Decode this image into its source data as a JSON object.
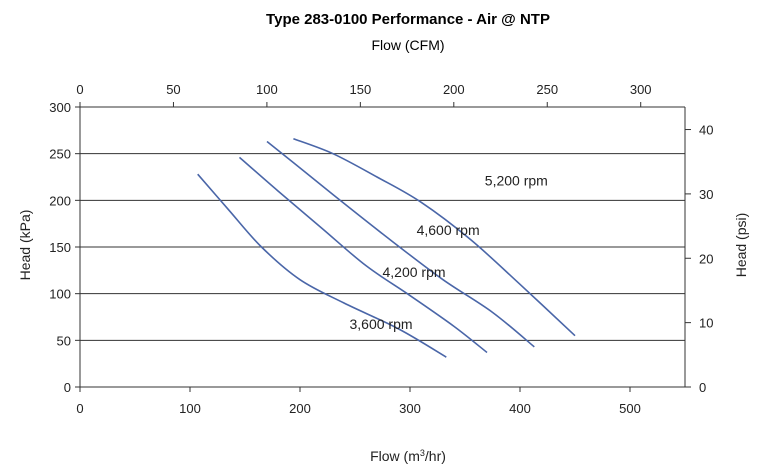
{
  "chart_data": {
    "type": "line",
    "title": "Type 283-0100 Performance - Air @ NTP",
    "top_axis_label": "Flow (CFM)",
    "xlabel_prefix": "Flow (m",
    "xlabel_sup": "3",
    "xlabel_suffix": "/hr)",
    "ylabel_left": "Head (kPa)",
    "ylabel_right": "Head (psi)",
    "xlim": [
      0,
      550
    ],
    "ylim": [
      0,
      300
    ],
    "top_xlim_cfm": [
      0,
      323.7
    ],
    "right_ylim_psi": [
      0,
      43.5
    ],
    "x_ticks": [
      "0",
      "100",
      "200",
      "300",
      "400",
      "500"
    ],
    "x_tick_values": [
      0,
      100,
      200,
      300,
      400,
      500
    ],
    "y_ticks": [
      "0",
      "50",
      "100",
      "150",
      "200",
      "250",
      "300"
    ],
    "y_tick_values": [
      0,
      50,
      100,
      150,
      200,
      250,
      300
    ],
    "top_ticks": [
      "0",
      "50",
      "100",
      "150",
      "200",
      "250",
      "300"
    ],
    "top_tick_values": [
      0,
      50,
      100,
      150,
      200,
      250,
      300
    ],
    "right_ticks": [
      "0",
      "10",
      "20",
      "30",
      "40"
    ],
    "right_tick_values": [
      0,
      10,
      20,
      30,
      40
    ],
    "grid": "horizontal",
    "line_color": "#4a66a8",
    "series": [
      {
        "label": "3,600 rpm",
        "label_at": [
          245,
          62
        ],
        "points": [
          [
            107,
            228
          ],
          [
            135,
            190
          ],
          [
            165,
            150
          ],
          [
            200,
            115
          ],
          [
            240,
            90
          ],
          [
            290,
            62
          ],
          [
            333,
            32
          ]
        ]
      },
      {
        "label": "4,200 rpm",
        "label_at": [
          275,
          118
        ],
        "points": [
          [
            145,
            246
          ],
          [
            180,
            210
          ],
          [
            220,
            170
          ],
          [
            260,
            130
          ],
          [
            300,
            98
          ],
          [
            340,
            65
          ],
          [
            370,
            37
          ]
        ]
      },
      {
        "label": "4,600 rpm",
        "label_at": [
          306,
          163
        ],
        "points": [
          [
            170,
            263
          ],
          [
            205,
            230
          ],
          [
            245,
            192
          ],
          [
            285,
            155
          ],
          [
            330,
            115
          ],
          [
            375,
            80
          ],
          [
            413,
            43
          ]
        ]
      },
      {
        "label": "5,200 rpm",
        "label_at": [
          368,
          216
        ],
        "points": [
          [
            194,
            266
          ],
          [
            230,
            250
          ],
          [
            270,
            225
          ],
          [
            310,
            198
          ],
          [
            355,
            158
          ],
          [
            400,
            110
          ],
          [
            450,
            55
          ]
        ]
      }
    ]
  }
}
